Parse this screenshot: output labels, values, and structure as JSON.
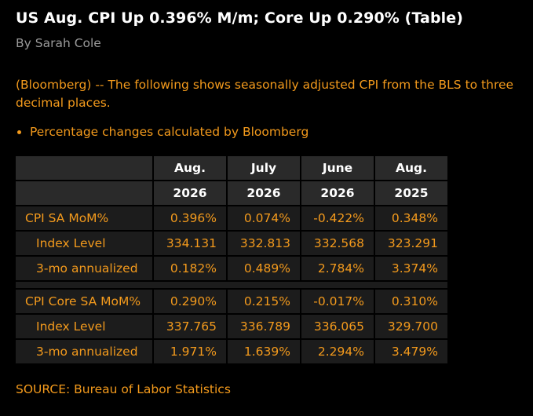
{
  "article": {
    "headline": "US Aug. CPI Up 0.396% M/m; Core Up 0.290% (Table)",
    "byline": "By Sarah Cole",
    "intro": "(Bloomberg) -- The following shows seasonally adjusted CPI from the BLS to three decimal places.",
    "bullet": "Percentage changes calculated by Bloomberg",
    "source": "SOURCE: Bureau of Labor Statistics"
  },
  "table": {
    "header_months": [
      "Aug.",
      "July",
      "June",
      "Aug."
    ],
    "header_years": [
      "2026",
      "2026",
      "2026",
      "2025"
    ],
    "sections": [
      {
        "rows": [
          {
            "label": "CPI SA MoM%",
            "values": [
              "0.396%",
              "0.074%",
              "-0.422%",
              "0.348%"
            ]
          },
          {
            "label": "Index Level",
            "values": [
              "334.131",
              "332.813",
              "332.568",
              "323.291"
            ]
          },
          {
            "label": "3-mo annualized",
            "values": [
              "0.182%",
              "0.489%",
              "2.784%",
              "3.374%"
            ]
          }
        ]
      },
      {
        "rows": [
          {
            "label": "CPI Core SA MoM%",
            "values": [
              "0.290%",
              "0.215%",
              "-0.017%",
              "0.310%"
            ]
          },
          {
            "label": "Index Level",
            "values": [
              "337.765",
              "336.789",
              "336.065",
              "329.700"
            ]
          },
          {
            "label": "3-mo annualized",
            "values": [
              "1.971%",
              "1.639%",
              "2.294%",
              "3.479%"
            ]
          }
        ]
      }
    ]
  },
  "colors": {
    "background": "#000000",
    "accent_orange": "#f39a1c",
    "headline_white": "#ffffff",
    "byline_gray": "#9a9a9a",
    "header_cell": "#2a2a2a",
    "body_cell": "#1c1c1c"
  }
}
